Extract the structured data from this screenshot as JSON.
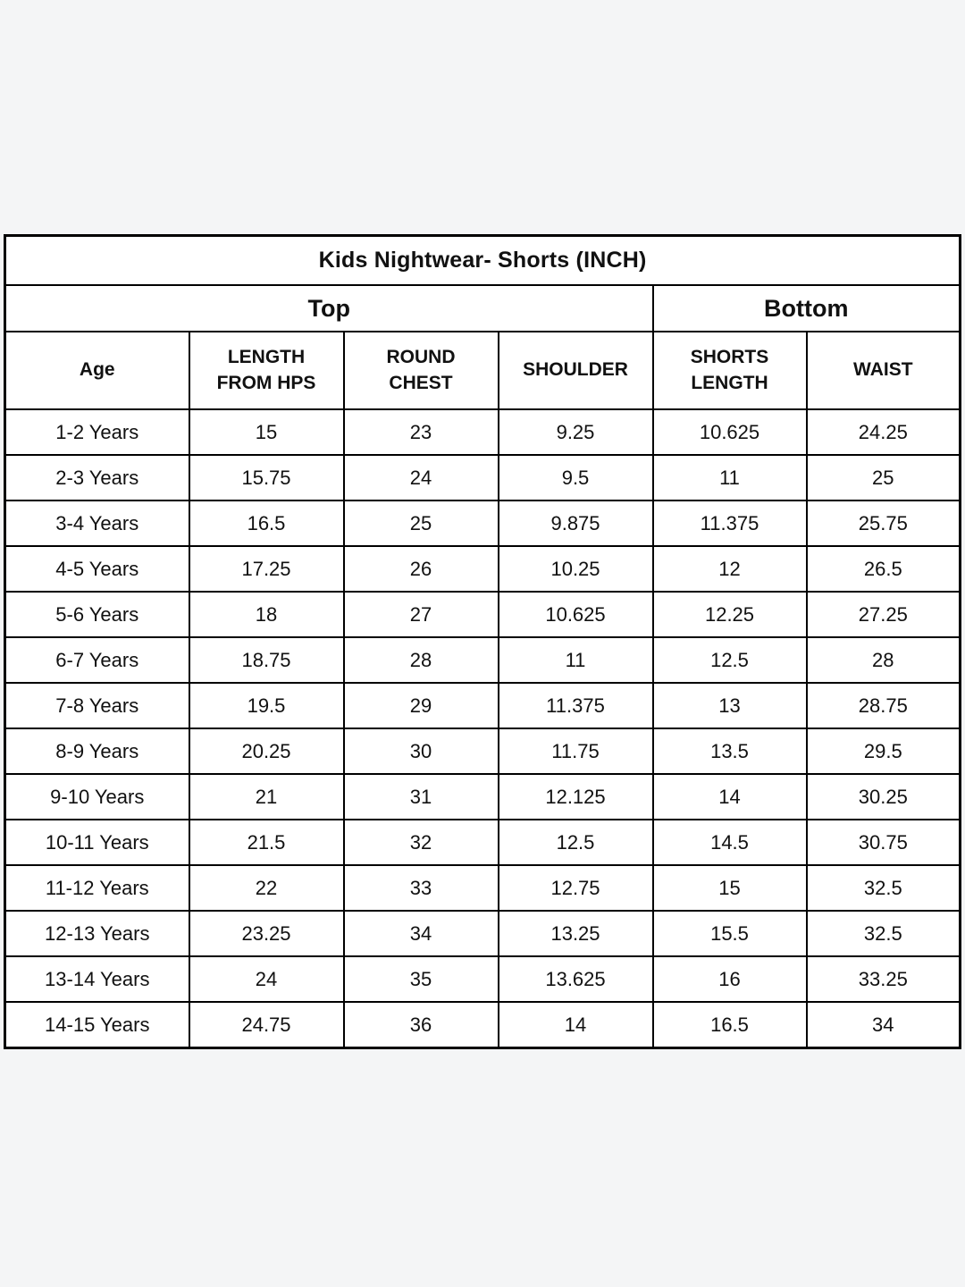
{
  "page": {
    "background_color": "#f4f5f6",
    "table_background_color": "#ffffff",
    "border_color": "#000000",
    "text_color": "#111111"
  },
  "table": {
    "title": "Kids Nightwear- Shorts (INCH)",
    "groups": [
      {
        "label": "Top",
        "colspan": 4
      },
      {
        "label": "Bottom",
        "colspan": 2
      }
    ],
    "columns": [
      "Age",
      "LENGTH FROM HPS",
      "ROUND CHEST",
      "SHOULDER",
      "SHORTS LENGTH",
      "WAIST"
    ],
    "rows": [
      [
        "1-2 Years",
        "15",
        "23",
        "9.25",
        "10.625",
        "24.25"
      ],
      [
        "2-3 Years",
        "15.75",
        "24",
        "9.5",
        "11",
        "25"
      ],
      [
        "3-4 Years",
        "16.5",
        "25",
        "9.875",
        "11.375",
        "25.75"
      ],
      [
        "4-5 Years",
        "17.25",
        "26",
        "10.25",
        "12",
        "26.5"
      ],
      [
        "5-6 Years",
        "18",
        "27",
        "10.625",
        "12.25",
        "27.25"
      ],
      [
        "6-7 Years",
        "18.75",
        "28",
        "11",
        "12.5",
        "28"
      ],
      [
        "7-8 Years",
        "19.5",
        "29",
        "11.375",
        "13",
        "28.75"
      ],
      [
        "8-9 Years",
        "20.25",
        "30",
        "11.75",
        "13.5",
        "29.5"
      ],
      [
        "9-10 Years",
        "21",
        "31",
        "12.125",
        "14",
        "30.25"
      ],
      [
        "10-11 Years",
        "21.5",
        "32",
        "12.5",
        "14.5",
        "30.75"
      ],
      [
        "11-12 Years",
        "22",
        "33",
        "12.75",
        "15",
        "32.5"
      ],
      [
        "12-13 Years",
        "23.25",
        "34",
        "13.25",
        "15.5",
        "32.5"
      ],
      [
        "13-14 Years",
        "24",
        "35",
        "13.625",
        "16",
        "33.25"
      ],
      [
        "14-15 Years",
        "24.75",
        "36",
        "14",
        "16.5",
        "34"
      ]
    ]
  },
  "chart_data": {
    "type": "table",
    "title": "Kids Nightwear- Shorts (INCH)",
    "column_groups": {
      "Top": [
        "Age",
        "LENGTH FROM HPS",
        "ROUND CHEST",
        "SHOULDER"
      ],
      "Bottom": [
        "SHORTS LENGTH",
        "WAIST"
      ]
    },
    "categories": [
      "1-2 Years",
      "2-3 Years",
      "3-4 Years",
      "4-5 Years",
      "5-6 Years",
      "6-7 Years",
      "7-8 Years",
      "8-9 Years",
      "9-10 Years",
      "10-11 Years",
      "11-12 Years",
      "12-13 Years",
      "13-14 Years",
      "14-15 Years"
    ],
    "series": [
      {
        "name": "LENGTH FROM HPS",
        "values": [
          15,
          15.75,
          16.5,
          17.25,
          18,
          18.75,
          19.5,
          20.25,
          21,
          21.5,
          22,
          23.25,
          24,
          24.75
        ]
      },
      {
        "name": "ROUND CHEST",
        "values": [
          23,
          24,
          25,
          26,
          27,
          28,
          29,
          30,
          31,
          32,
          33,
          34,
          35,
          36
        ]
      },
      {
        "name": "SHOULDER",
        "values": [
          9.25,
          9.5,
          9.875,
          10.25,
          10.625,
          11,
          11.375,
          11.75,
          12.125,
          12.5,
          12.75,
          13.25,
          13.625,
          14
        ]
      },
      {
        "name": "SHORTS LENGTH",
        "values": [
          10.625,
          11,
          11.375,
          12,
          12.25,
          12.5,
          13,
          13.5,
          14,
          14.5,
          15,
          15.5,
          16,
          16.5
        ]
      },
      {
        "name": "WAIST",
        "values": [
          24.25,
          25,
          25.75,
          26.5,
          27.25,
          28,
          28.75,
          29.5,
          30.25,
          30.75,
          32.5,
          32.5,
          33.25,
          34
        ]
      }
    ],
    "units": "inches"
  }
}
